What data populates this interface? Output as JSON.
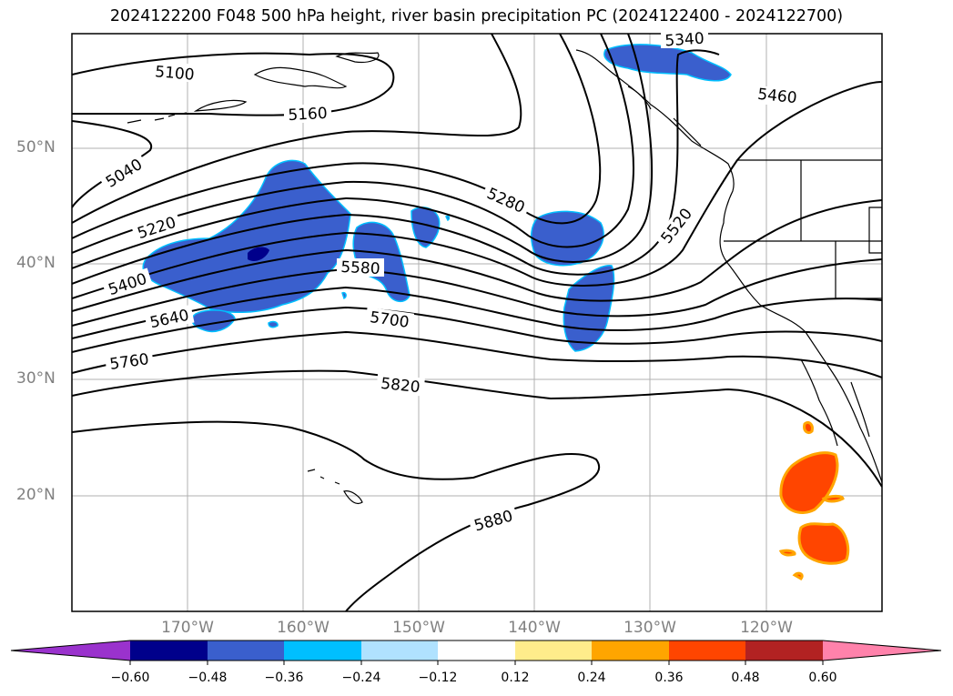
{
  "title": "2024122200 F048 500 hPa height, river basin precipitation PC (2024122400 - 2024122700)",
  "map": {
    "lat_labels": [
      "50°N",
      "40°N",
      "30°N",
      "20°N"
    ],
    "lon_labels": [
      "170°W",
      "160°W",
      "150°W",
      "140°W",
      "130°W",
      "120°W"
    ],
    "contour_labels": [
      "5100",
      "5160",
      "5340",
      "5460",
      "5040",
      "5280",
      "5520",
      "5220",
      "5400",
      "5580",
      "5640",
      "5700",
      "5760",
      "5820",
      "5880"
    ],
    "colors": {
      "line": "#000000",
      "negative_fill": "#3a5fcd",
      "positive_fill": "#ff4500",
      "grid": "#b0b0b0"
    }
  },
  "colorbar": {
    "ticks": [
      "−0.60",
      "−0.48",
      "−0.36",
      "−0.24",
      "−0.12",
      "0.12",
      "0.24",
      "0.36",
      "0.48",
      "0.60"
    ],
    "colors": [
      "#9a32cd",
      "#00008b",
      "#3a5fcd",
      "#00bfff",
      "#b0e2ff",
      "#ffffff",
      "#ffec8b",
      "#ffa500",
      "#ff4500",
      "#b22222",
      "#ff82ab"
    ]
  }
}
